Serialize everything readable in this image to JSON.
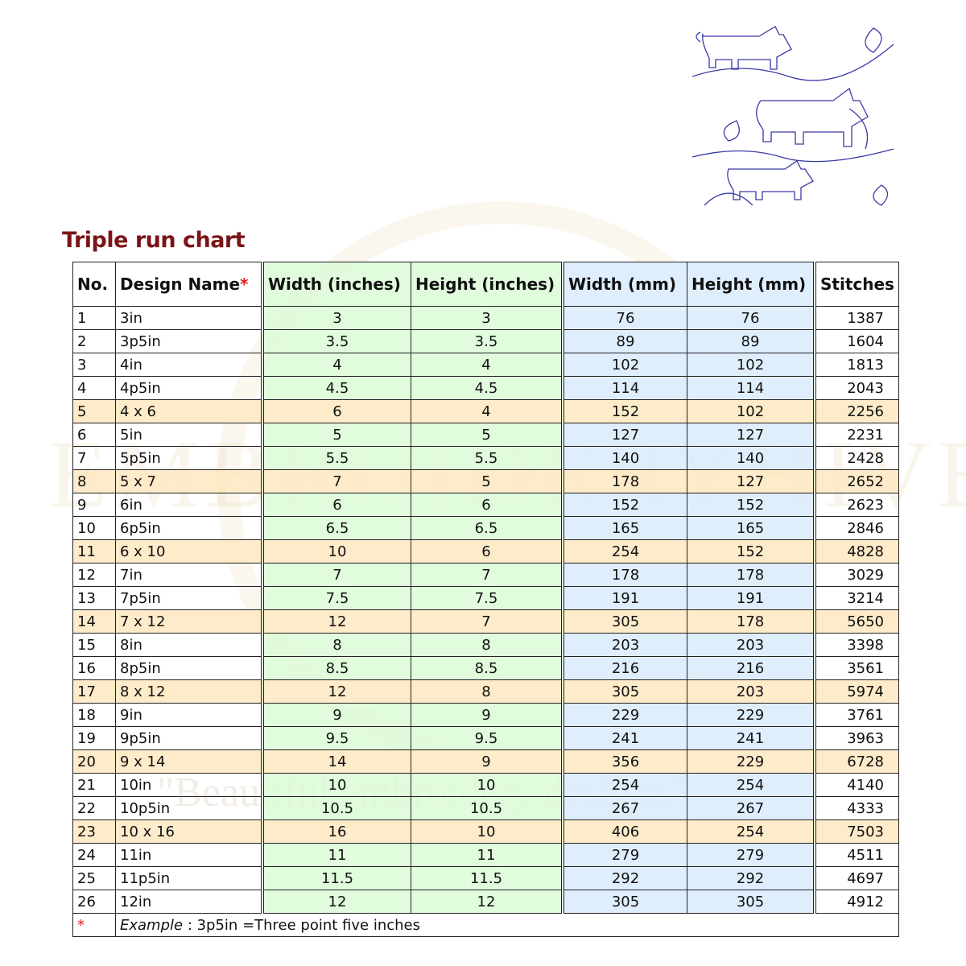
{
  "title": "Triple run chart",
  "watermark": "EMBROIDERYHIVE",
  "tagline": "\"Beautiful embroidery designs\"",
  "headers": {
    "no": "No.",
    "name": "Design Name",
    "star": "*",
    "win": "Width (inches)",
    "hin": "Height (inches)",
    "wmm": "Width (mm)",
    "hmm": "Height (mm)",
    "st": "Stitches"
  },
  "rows": [
    [
      "1",
      "3in",
      "3",
      "3",
      "76",
      "76",
      "1387"
    ],
    [
      "2",
      "3p5in",
      "3.5",
      "3.5",
      "89",
      "89",
      "1604"
    ],
    [
      "3",
      "4in",
      "4",
      "4",
      "102",
      "102",
      "1813"
    ],
    [
      "4",
      "4p5in",
      "4.5",
      "4.5",
      "114",
      "114",
      "2043"
    ],
    [
      "5",
      "4 x 6",
      "6",
      "4",
      "152",
      "102",
      "2256"
    ],
    [
      "6",
      "5in",
      "5",
      "5",
      "127",
      "127",
      "2231"
    ],
    [
      "7",
      "5p5in",
      "5.5",
      "5.5",
      "140",
      "140",
      "2428"
    ],
    [
      "8",
      "5 x 7",
      "7",
      "5",
      "178",
      "127",
      "2652"
    ],
    [
      "9",
      "6in",
      "6",
      "6",
      "152",
      "152",
      "2623"
    ],
    [
      "10",
      "6p5in",
      "6.5",
      "6.5",
      "165",
      "165",
      "2846"
    ],
    [
      "11",
      "6 x 10",
      "10",
      "6",
      "254",
      "152",
      "4828"
    ],
    [
      "12",
      "7in",
      "7",
      "7",
      "178",
      "178",
      "3029"
    ],
    [
      "13",
      "7p5in",
      "7.5",
      "7.5",
      "191",
      "191",
      "3214"
    ],
    [
      "14",
      "7 x 12",
      "12",
      "7",
      "305",
      "178",
      "5650"
    ],
    [
      "15",
      "8in",
      "8",
      "8",
      "203",
      "203",
      "3398"
    ],
    [
      "16",
      "8p5in",
      "8.5",
      "8.5",
      "216",
      "216",
      "3561"
    ],
    [
      "17",
      "8 x 12",
      "12",
      "8",
      "305",
      "203",
      "5974"
    ],
    [
      "18",
      "9in",
      "9",
      "9",
      "229",
      "229",
      "3761"
    ],
    [
      "19",
      "9p5in",
      "9.5",
      "9.5",
      "241",
      "241",
      "3963"
    ],
    [
      "20",
      "9 x 14",
      "14",
      "9",
      "356",
      "229",
      "6728"
    ],
    [
      "21",
      "10in",
      "10",
      "10",
      "254",
      "254",
      "4140"
    ],
    [
      "22",
      "10p5in",
      "10.5",
      "10.5",
      "267",
      "267",
      "4333"
    ],
    [
      "23",
      "10 x 16",
      "16",
      "10",
      "406",
      "254",
      "7503"
    ],
    [
      "24",
      "11in",
      "11",
      "11",
      "279",
      "279",
      "4511"
    ],
    [
      "25",
      "11p5in",
      "11.5",
      "11.5",
      "292",
      "292",
      "4697"
    ],
    [
      "26",
      "12in",
      "12",
      "12",
      "305",
      "305",
      "4912"
    ]
  ],
  "footnote": {
    "star": "*",
    "label": "Example",
    "text": " : 3p5in =Three point five inches"
  },
  "colors": {
    "title": "#7a1416",
    "inches_bg": "#dcfad7",
    "mm_bg": "#dcecfc",
    "highlight_bg": "#fde9c4",
    "outline": "#3a3aa8"
  }
}
